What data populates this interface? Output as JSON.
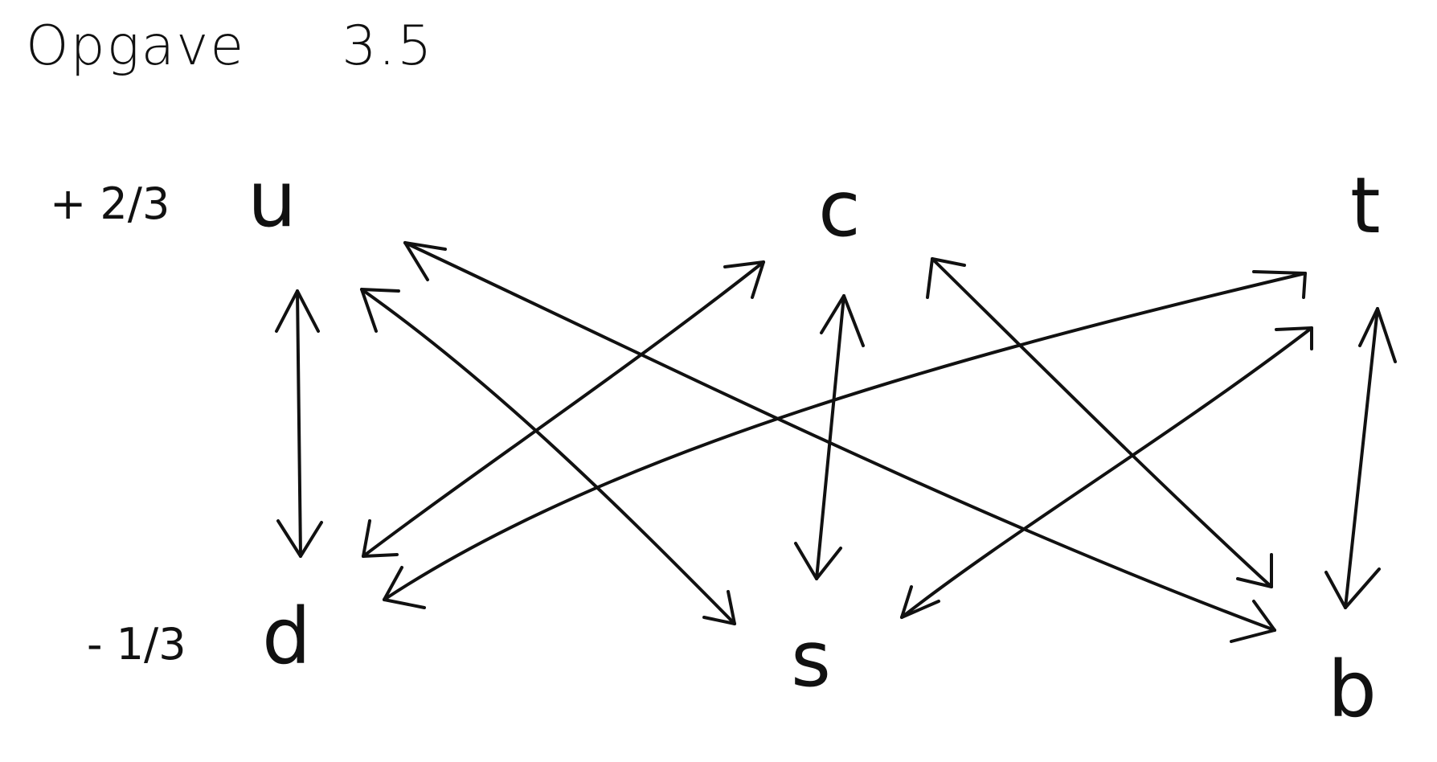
{
  "heading": {
    "label": "Opgave",
    "number": "3.5"
  },
  "charges": {
    "top": "+ 2/3",
    "bottom": "- 1/3"
  },
  "quarks": {
    "top": [
      "u",
      "c",
      "t"
    ],
    "bottom": [
      "d",
      "s",
      "b"
    ]
  },
  "transitions": [
    {
      "from": "u",
      "to": "d"
    },
    {
      "from": "u",
      "to": "s"
    },
    {
      "from": "u",
      "to": "b"
    },
    {
      "from": "c",
      "to": "d"
    },
    {
      "from": "c",
      "to": "s"
    },
    {
      "from": "c",
      "to": "b"
    },
    {
      "from": "t",
      "to": "d"
    },
    {
      "from": "t",
      "to": "s"
    },
    {
      "from": "t",
      "to": "b"
    }
  ]
}
